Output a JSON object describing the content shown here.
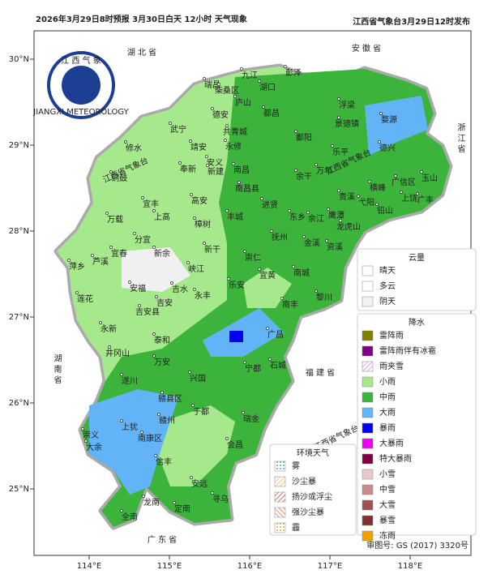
{
  "header": {
    "title": "2026年3月29日8时预报 3月30日白天 12小时  天气现象",
    "issuer": "江西省气象台3月29日12时发布"
  },
  "logo": {
    "text": "江 西 气 象",
    "subtext": "JIANGXI METEOROLOGY"
  },
  "map": {
    "xticks": [
      {
        "value": 114,
        "label": "114°E"
      },
      {
        "value": 115,
        "label": "115°E"
      },
      {
        "value": 116,
        "label": "116°E"
      },
      {
        "value": 117,
        "label": "117°E"
      },
      {
        "value": 118,
        "label": "118°E"
      }
    ],
    "yticks": [
      {
        "value": 25,
        "label": "25°N"
      },
      {
        "value": 26,
        "label": "26°N"
      },
      {
        "value": 27,
        "label": "27°N"
      },
      {
        "value": 28,
        "label": "28°N"
      },
      {
        "value": 29,
        "label": "29°N"
      },
      {
        "value": 30,
        "label": "30°N"
      }
    ],
    "provinces": [
      "湖 北 省",
      "安 徽 省",
      "浙 江 省",
      "湖 南 省",
      "福 建 省",
      "广 东 省"
    ],
    "watermark": "江西省气象台",
    "cities": [
      "九江",
      "彭泽",
      "瑞昌",
      "湖口",
      "柴桑区",
      "庐山",
      "德安",
      "都昌",
      "浮梁",
      "景德镇",
      "婺源",
      "武宁",
      "共青城",
      "永修",
      "修水",
      "靖安",
      "鄱阳",
      "乐平",
      "德兴",
      "奉新",
      "安义",
      "新建",
      "南昌",
      "余干",
      "万年",
      "铜鼓",
      "南昌县",
      "广信区",
      "玉山",
      "横峰",
      "宜丰",
      "高安",
      "进贤",
      "贵溪",
      "弋阳",
      "上饶",
      "广丰",
      "铅山",
      "万载",
      "上高",
      "丰城",
      "东乡",
      "余江",
      "鹰潭",
      "龙虎山",
      "樟树",
      "抚州",
      "金溪",
      "资溪",
      "分宜",
      "宜春",
      "新余",
      "新干",
      "崇仁",
      "萍乡",
      "芦溪",
      "峡江",
      "宜黄",
      "南城",
      "乐安",
      "安福",
      "吉水",
      "永丰",
      "莲花",
      "吉安",
      "吉安县",
      "黎川",
      "南丰",
      "广昌",
      "永新",
      "泰和",
      "井冈山",
      "遂川",
      "万安",
      "兴国",
      "宁都",
      "石城",
      "赣县区",
      "于都",
      "瑞金",
      "赣州",
      "上犹",
      "崇义",
      "南康区",
      "大余",
      "会昌",
      "信丰",
      "安远",
      "全南",
      "龙南",
      "定南",
      "寻乌"
    ]
  },
  "legend": {
    "cloud": {
      "title": "云量",
      "items": [
        "晴天",
        "多云",
        "阴天"
      ]
    },
    "precip": {
      "title": "降水",
      "items": [
        "雷阵雨",
        "雷阵雨伴有冰雹",
        "雨夹雪",
        "小雨",
        "中雨",
        "大雨",
        "暴雨",
        "大暴雨",
        "特大暴雨",
        "小雪",
        "中雪",
        "大雪",
        "暴雪",
        "冻雨"
      ]
    },
    "env": {
      "title": "环境天气",
      "items": [
        "雾",
        "沙尘暴",
        "扬沙或浮尘",
        "强沙尘暴",
        "霾"
      ]
    }
  },
  "footer": {
    "approval": "审图号: GS (2017) 3320号"
  }
}
